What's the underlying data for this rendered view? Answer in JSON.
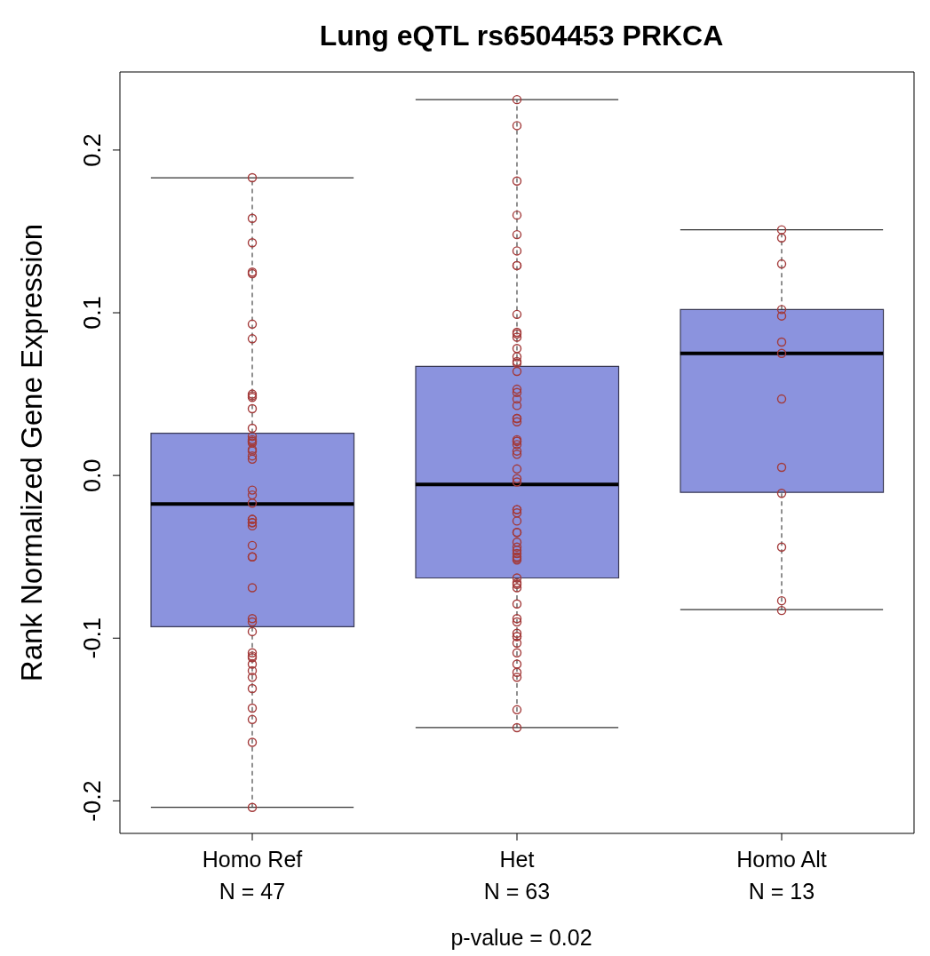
{
  "chart_data": {
    "type": "box",
    "title": "Lung eQTL rs6504453 PRKCA",
    "ylabel": "Rank Normalized Gene Expression",
    "categories": [
      "Homo Ref",
      "Het",
      "Homo Alt"
    ],
    "ylim": [
      -0.22,
      0.248
    ],
    "yticks": [
      -0.2,
      -0.1,
      {
        "value": 0,
        "label": "0.0"
      },
      0.1,
      0.2
    ],
    "grid": false,
    "legend": false,
    "marker": "circle",
    "annotations": [
      "N =  47",
      "N =  63",
      "N =  13",
      "p-value = 0.02"
    ],
    "series": [
      {
        "color": "#8b93de",
        "boxes": [
          {
            "low": -0.204,
            "q1": -0.093,
            "median": -0.0175,
            "q3": 0.026,
            "high": 0.183
          },
          {
            "low": -0.155,
            "q1": -0.063,
            "median": -0.0055,
            "q3": 0.067,
            "high": 0.231
          },
          {
            "low": -0.0825,
            "q1": -0.0104,
            "median": 0.075,
            "q3": 0.102,
            "high": 0.151
          }
        ]
      },
      {
        "type": "scatter",
        "color": "#a33a3a",
        "x": [
          "Homo Ref",
          "Homo Ref",
          "Homo Ref",
          "Homo Ref",
          "Homo Ref",
          "Homo Ref",
          "Homo Ref",
          "Homo Ref",
          "Homo Ref",
          "Homo Ref",
          "Homo Ref",
          "Homo Ref",
          "Homo Ref",
          "Homo Ref",
          "Homo Ref",
          "Homo Ref",
          "Homo Ref",
          "Homo Ref",
          "Homo Ref",
          "Homo Ref",
          "Homo Ref",
          "Homo Ref",
          "Homo Ref",
          "Homo Ref",
          "Homo Ref",
          "Homo Ref",
          "Homo Ref",
          "Homo Ref",
          "Homo Ref",
          "Homo Ref",
          "Homo Ref",
          "Homo Ref",
          "Homo Ref",
          "Homo Ref",
          "Homo Ref",
          "Homo Ref",
          "Homo Ref",
          "Homo Ref",
          "Homo Ref",
          "Homo Ref",
          "Homo Ref",
          "Homo Ref",
          "Homo Ref",
          "Homo Ref",
          "Homo Ref",
          "Homo Ref",
          "Homo Ref",
          "Het",
          "Het",
          "Het",
          "Het",
          "Het",
          "Het",
          "Het",
          "Het",
          "Het",
          "Het",
          "Het",
          "Het",
          "Het",
          "Het",
          "Het",
          "Het",
          "Het",
          "Het",
          "Het",
          "Het",
          "Het",
          "Het",
          "Het",
          "Het",
          "Het",
          "Het",
          "Het",
          "Het",
          "Het",
          "Het",
          "Het",
          "Het",
          "Het",
          "Het",
          "Het",
          "Het",
          "Het",
          "Het",
          "Het",
          "Het",
          "Het",
          "Het",
          "Het",
          "Het",
          "Het",
          "Het",
          "Het",
          "Het",
          "Het",
          "Het",
          "Het",
          "Het",
          "Het",
          "Het",
          "Het",
          "Het",
          "Het",
          "Het",
          "Het",
          "Het",
          "Het",
          "Het",
          "Het",
          "Homo Alt",
          "Homo Alt",
          "Homo Alt",
          "Homo Alt",
          "Homo Alt",
          "Homo Alt",
          "Homo Alt",
          "Homo Alt",
          "Homo Alt",
          "Homo Alt",
          "Homo Alt",
          "Homo Alt",
          "Homo Alt"
        ],
        "values": [
          0.183,
          0.158,
          0.143,
          0.125,
          0.124,
          0.093,
          0.084,
          0.05,
          0.049,
          0.048,
          0.041,
          0.029,
          0.024,
          0.022,
          0.021,
          0.021,
          0.02,
          0.016,
          0.015,
          0.012,
          0.01,
          -0.009,
          -0.012,
          -0.017,
          -0.027,
          -0.027,
          -0.029,
          -0.029,
          -0.031,
          -0.043,
          -0.05,
          -0.05,
          -0.069,
          -0.088,
          -0.09,
          -0.096,
          -0.109,
          -0.111,
          -0.112,
          -0.116,
          -0.12,
          -0.124,
          -0.131,
          -0.143,
          -0.15,
          -0.164,
          -0.204,
          0.231,
          0.215,
          0.181,
          0.16,
          0.148,
          0.138,
          0.129,
          0.129,
          0.099,
          0.088,
          0.087,
          0.085,
          0.078,
          0.073,
          0.07,
          0.069,
          0.064,
          0.053,
          0.051,
          0.047,
          0.043,
          0.035,
          0.035,
          0.033,
          0.022,
          0.021,
          0.021,
          0.019,
          0.015,
          0.013,
          0.004,
          -0.002,
          -0.004,
          -0.021,
          -0.021,
          -0.023,
          -0.028,
          -0.035,
          -0.035,
          -0.041,
          -0.044,
          -0.046,
          -0.048,
          -0.05,
          -0.052,
          -0.063,
          -0.066,
          -0.067,
          -0.069,
          -0.079,
          -0.088,
          -0.09,
          -0.097,
          -0.099,
          -0.099,
          -0.103,
          -0.109,
          -0.116,
          -0.121,
          -0.124,
          -0.144,
          -0.155,
          -0.051,
          0.151,
          0.146,
          0.13,
          0.102,
          0.098,
          0.082,
          0.075,
          0.047,
          0.005,
          -0.011,
          -0.044,
          -0.077,
          -0.083
        ]
      }
    ]
  }
}
